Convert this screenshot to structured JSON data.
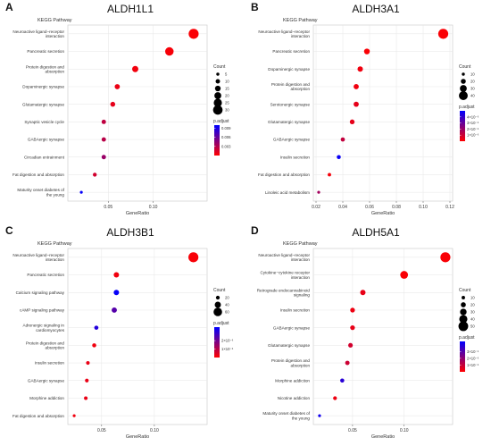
{
  "figure": {
    "colors": {
      "low": "#ff0000",
      "high": "#0000ff",
      "grid": "#e6e6e6",
      "frame": "#c8c8c8"
    }
  },
  "chart_data": [
    {
      "type": "scatter",
      "panel_letter": "A",
      "title": "ALDH1L1",
      "ylabel": "KEGG Pathway",
      "xlabel": "GeneRatio",
      "categories": [
        "Neuroactive ligand−receptor\ninteraction",
        "Pancreatic secretion",
        "Protein digestion and\nabsorption",
        "Dopaminergic synapse",
        "Glutamatergic synapse",
        "Synaptic vesicle cycle",
        "GABAergic synapse",
        "Circadian entrainment",
        "Fat digestion and absorption",
        "Maturity onset diabetes of\nthe young"
      ],
      "x": [
        0.145,
        0.118,
        0.08,
        0.06,
        0.055,
        0.045,
        0.045,
        0.045,
        0.035,
        0.02
      ],
      "count": [
        32,
        26,
        17,
        13,
        12,
        10,
        10,
        10,
        8,
        4
      ],
      "p_adjust": [
        0.0002,
        0.0003,
        0.0005,
        0.0008,
        0.001,
        0.0025,
        0.0028,
        0.004,
        0.0018,
        0.0098
      ],
      "xlim": [
        0.005,
        0.16
      ],
      "xticks": [
        0.05,
        0.1
      ],
      "xtick_labels": [
        "0.05",
        "0.10"
      ],
      "size_legend": {
        "title": "Count",
        "values": [
          5,
          10,
          15,
          20,
          25,
          30
        ],
        "labels": [
          "5",
          "10",
          "15",
          "20",
          "25",
          "30"
        ],
        "range": [
          4,
          32
        ]
      },
      "color_legend": {
        "title": "p.adjust",
        "range": [
          0,
          0.01
        ],
        "labels": [
          "0.009",
          "0.006",
          "0.003"
        ],
        "label_values": [
          0.009,
          0.006,
          0.003
        ]
      },
      "grid": true,
      "legend_position": "right"
    },
    {
      "type": "scatter",
      "panel_letter": "B",
      "title": "ALDH3A1",
      "ylabel": "KEGG Pathway",
      "xlabel": "GeneRatio",
      "categories": [
        "Neuroactive ligand−receptor\ninteraction",
        "Pancreatic secretion",
        "Dopaminergic synapse",
        "Protein digestion and\nabsorption",
        "Serotonergic synapse",
        "Glutamatergic synapse",
        "GABAergic synapse",
        "Insulin secretion",
        "Fat digestion and absorption",
        "Linoleic acid metabolism"
      ],
      "x": [
        0.115,
        0.058,
        0.053,
        0.05,
        0.05,
        0.047,
        0.04,
        0.037,
        0.03,
        0.022
      ],
      "count": [
        46,
        24,
        22,
        21,
        21,
        19,
        16,
        15,
        12,
        9
      ],
      "p_adjust": [
        1e-07,
        1e-07,
        3e-07,
        3e-07,
        5e-07,
        5e-07,
        1.2e-06,
        4.8e-06,
        2e-07,
        1.8e-06
      ],
      "xlim": [
        0.018,
        0.122
      ],
      "xticks": [
        0.02,
        0.04,
        0.06,
        0.08,
        0.1,
        0.12
      ],
      "xtick_labels": [
        "0.02",
        "0.04",
        "0.06",
        "0.08",
        "0.10",
        "0.12"
      ],
      "size_legend": {
        "title": "Count",
        "values": [
          10,
          20,
          30,
          40
        ],
        "labels": [
          "10",
          "20",
          "30",
          "40"
        ],
        "range": [
          9,
          46
        ]
      },
      "color_legend": {
        "title": "p.adjust",
        "range": [
          0,
          5e-06
        ],
        "labels": [
          "4×10⁻⁶",
          "3×10⁻⁶",
          "2×10⁻⁶",
          "1×10⁻⁶"
        ],
        "label_values": [
          4e-06,
          3e-06,
          2e-06,
          1e-06
        ]
      },
      "grid": true,
      "legend_position": "right"
    },
    {
      "type": "scatter",
      "panel_letter": "C",
      "title": "ALDH3B1",
      "ylabel": "KEGG Pathway",
      "xlabel": "GeneRatio",
      "categories": [
        "Neuroactive ligand−receptor\ninteraction",
        "Pancreatic secretion",
        "Calcium signaling pathway",
        "cAMP signaling pathway",
        "Adrenergic signaling in\ncardiomyocytes",
        "Protein digestion and\nabsorption",
        "Insulin secretion",
        "GABAergic synapse",
        "Morphine addiction",
        "Fat digestion and absorption"
      ],
      "x": [
        0.137,
        0.064,
        0.064,
        0.062,
        0.045,
        0.043,
        0.037,
        0.036,
        0.035,
        0.024
      ],
      "count": [
        72,
        33,
        33,
        32,
        23,
        22,
        19,
        19,
        18,
        12
      ],
      "p_adjust": [
        1e-07,
        2e-07,
        3.5e-06,
        2.4e-06,
        3.1e-06,
        2e-07,
        3e-07,
        3e-07,
        3e-07,
        2e-07
      ],
      "xlim": [
        0.018,
        0.15
      ],
      "xticks": [
        0.05,
        0.1
      ],
      "xtick_labels": [
        "0.05",
        "0.10"
      ],
      "size_legend": {
        "title": "Count",
        "values": [
          20,
          40,
          60
        ],
        "labels": [
          "20",
          "40",
          "60"
        ],
        "range": [
          12,
          72
        ]
      },
      "color_legend": {
        "title": "p.adjust",
        "range": [
          0,
          3.6e-06
        ],
        "labels": [
          "2×10⁻⁶",
          "1×10⁻⁶"
        ],
        "label_values": [
          2e-06,
          1e-06
        ]
      },
      "grid": true,
      "legend_position": "right"
    },
    {
      "type": "scatter",
      "panel_letter": "D",
      "title": "ALDH5A1",
      "ylabel": "KEGG Pathway",
      "xlabel": "GeneRatio",
      "categories": [
        "Neuroactive ligand−receptor\ninteraction",
        "Cytokine−cytokine receptor\ninteraction",
        "Retrograde endocannabinoid\nsignaling",
        "Insulin secretion",
        "GABAergic synapse",
        "Glutamatergic synapse",
        "Protein digestion and\nabsorption",
        "Morphine addiction",
        "Nicotine addiction",
        "Maturity onset diabetes of\nthe young"
      ],
      "x": [
        0.14,
        0.1,
        0.06,
        0.05,
        0.05,
        0.048,
        0.045,
        0.04,
        0.033,
        0.018
      ],
      "count": [
        52,
        38,
        22,
        18,
        18,
        17,
        16,
        14,
        12,
        6
      ],
      "p_adjust": [
        1e-07,
        1e-07,
        4e-07,
        3e-07,
        4e-07,
        8e-07,
        9e-07,
        3.8e-06,
        3e-07,
        4.2e-06
      ],
      "xlim": [
        0.012,
        0.147
      ],
      "xticks": [
        0.05,
        0.1
      ],
      "xtick_labels": [
        "0.05",
        "0.10"
      ],
      "size_legend": {
        "title": "Count",
        "values": [
          10,
          20,
          30,
          40,
          50
        ],
        "labels": [
          "10",
          "20",
          "30",
          "40",
          "50"
        ],
        "range": [
          6,
          52
        ]
      },
      "color_legend": {
        "title": "p.adjust",
        "range": [
          0,
          4.5e-06
        ],
        "labels": [
          "3×10⁻⁶",
          "2×10⁻⁶",
          "1×10⁻⁶"
        ],
        "label_values": [
          3e-06,
          2e-06,
          1e-06
        ]
      },
      "grid": true,
      "legend_position": "right"
    }
  ]
}
